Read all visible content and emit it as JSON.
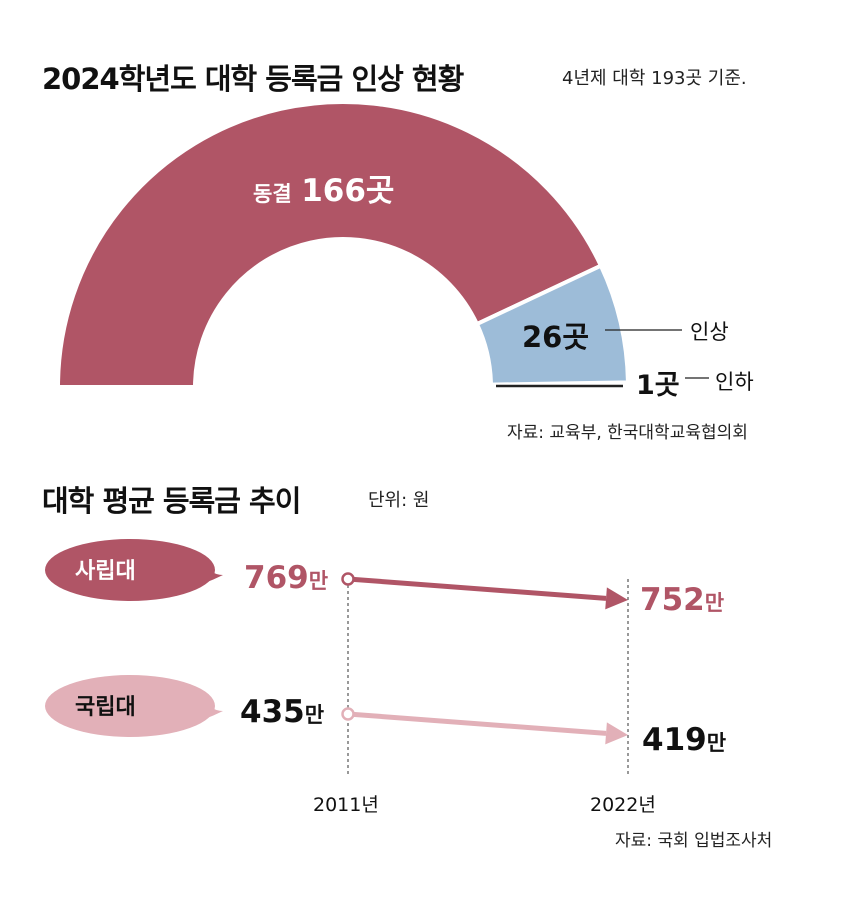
{
  "chart_data": [
    {
      "type": "pie",
      "variant": "half-donut",
      "title": "2024학년도 대학 등록금 인상 현황",
      "subtitle": "4년제 대학 193곳 기준.",
      "total": 193,
      "slices": [
        {
          "label": "동결",
          "value": 166,
          "value_label": "166곳",
          "color": "#b05566"
        },
        {
          "label": "인상",
          "value": 26,
          "value_label": "26곳",
          "color": "#9dbcd8"
        },
        {
          "label": "인하",
          "value": 1,
          "value_label": "1곳",
          "color": "#222222"
        }
      ],
      "source": "자료: 교육부, 한국대학교육협의회"
    },
    {
      "type": "line",
      "title": "대학 평균 등록금 추이",
      "unit": "단위: 원",
      "x": [
        "2011년",
        "2022년"
      ],
      "series": [
        {
          "name": "사립대",
          "values": [
            769,
            752
          ],
          "value_labels": [
            "769",
            "752"
          ],
          "suffix": "만",
          "color": "#b05566"
        },
        {
          "name": "국립대",
          "values": [
            435,
            419
          ],
          "value_labels": [
            "435",
            "419"
          ],
          "suffix": "만",
          "color": "#e2b0b8"
        }
      ],
      "source": "자료: 국회 입법조사처"
    }
  ]
}
